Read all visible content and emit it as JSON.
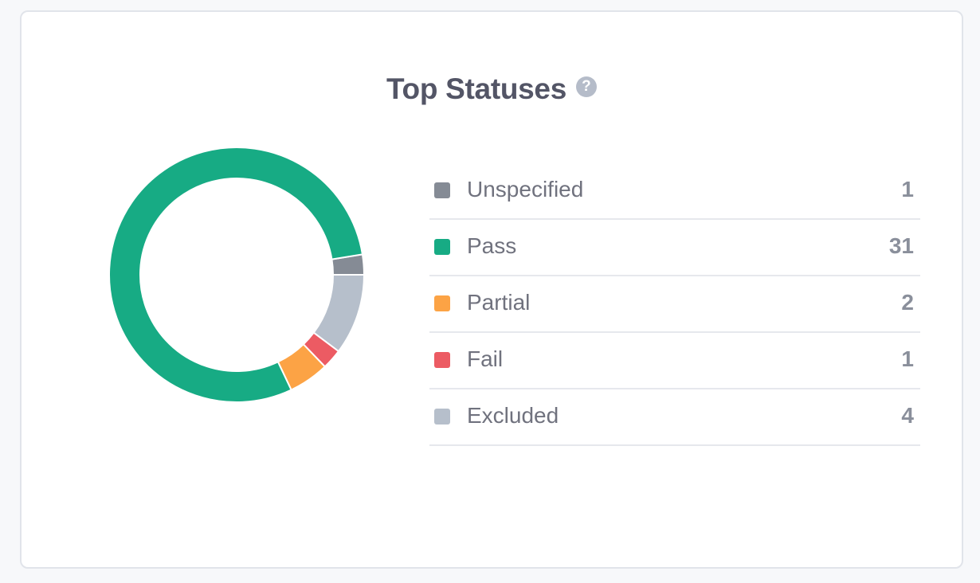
{
  "card": {
    "title": "Top Statuses",
    "help_glyph": "?"
  },
  "chart_data": {
    "type": "pie",
    "style": "donut",
    "title": "Top Statuses",
    "categories": [
      "Unspecified",
      "Pass",
      "Partial",
      "Fail",
      "Excluded"
    ],
    "values": [
      1,
      31,
      2,
      1,
      4
    ],
    "colors": [
      "#858b95",
      "#17ab84",
      "#fca345",
      "#ec5b63",
      "#b6bfcb"
    ],
    "legend": "right"
  },
  "legend": [
    {
      "label": "Unspecified",
      "value": "1",
      "color": "#858b95"
    },
    {
      "label": "Pass",
      "value": "31",
      "color": "#17ab84"
    },
    {
      "label": "Partial",
      "value": "2",
      "color": "#fca345"
    },
    {
      "label": "Fail",
      "value": "1",
      "color": "#ec5b63"
    },
    {
      "label": "Excluded",
      "value": "4",
      "color": "#b6bfcb"
    }
  ],
  "icons": {
    "help": "question-circle-icon",
    "legend_marker": "square-swatch-icon"
  }
}
